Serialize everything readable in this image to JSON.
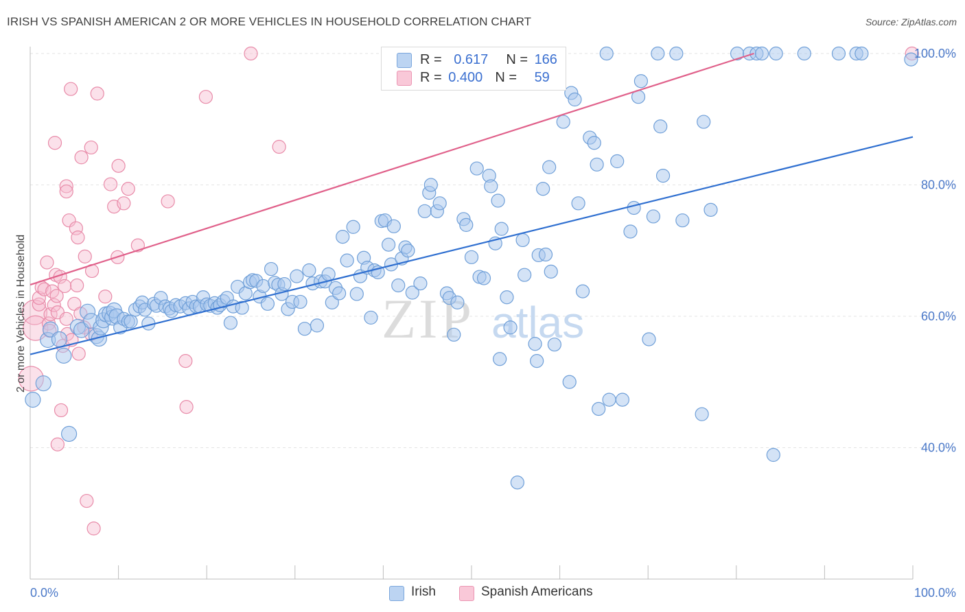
{
  "title": "IRISH VS SPANISH AMERICAN 2 OR MORE VEHICLES IN HOUSEHOLD CORRELATION CHART",
  "source": "Source: ZipAtlas.com",
  "watermark": "ZIPatlas",
  "legend": {
    "irish": {
      "r_label": "R = ",
      "r_value": "0.617",
      "n_label": "N = ",
      "n_value": "166"
    },
    "spanish": {
      "r_label": "R = ",
      "r_value": "0.400",
      "n_label": "N = ",
      "n_value": "59"
    }
  },
  "bottom_legend": {
    "irish": "Irish",
    "spanish": "Spanish Americans"
  },
  "colors": {
    "irish_fill": "#aac8ee",
    "irish_stroke": "#6f9fd8",
    "irish_line": "#2f6fd0",
    "spanish_fill": "#f6bcd0",
    "spanish_stroke": "#e88aa8",
    "spanish_line": "#e0608a",
    "tick_label": "#4a78c8",
    "grid": "#e3e3e3"
  },
  "chart_data": {
    "type": "scatter",
    "title": "IRISH VS SPANISH AMERICAN 2 OR MORE VEHICLES IN HOUSEHOLD CORRELATION CHART",
    "xlabel": "",
    "ylabel": "2 or more Vehicles in Household",
    "xlim": [
      0,
      100
    ],
    "ylim": [
      20,
      102
    ],
    "x_tick_labels": [
      "0.0%",
      "100.0%"
    ],
    "y_ticks": [
      40,
      60,
      80,
      100
    ],
    "y_tick_labels": [
      "40.0%",
      "60.0%",
      "80.0%",
      "100.0%"
    ],
    "grid": true,
    "series": [
      {
        "name": "Irish",
        "r": 0.617,
        "n": 166,
        "trend": {
          "x": [
            0,
            100
          ],
          "y": [
            54.2,
            87.3
          ]
        },
        "points": [
          [
            0.3,
            47.3
          ],
          [
            1.5,
            49.8
          ],
          [
            2.0,
            56.4
          ],
          [
            2.3,
            58.0
          ],
          [
            3.3,
            56.5
          ],
          [
            3.8,
            54.0
          ],
          [
            4.4,
            42.1
          ],
          [
            5.4,
            58.4
          ],
          [
            5.8,
            57.9
          ],
          [
            6.5,
            60.7
          ],
          [
            6.9,
            59.3
          ],
          [
            7.5,
            57.0
          ],
          [
            7.8,
            56.6
          ],
          [
            8.0,
            58.3
          ],
          [
            8.3,
            59.4
          ],
          [
            8.6,
            60.3
          ],
          [
            9.0,
            60.4
          ],
          [
            9.3,
            59.8
          ],
          [
            9.5,
            60.9
          ],
          [
            9.8,
            60.0
          ],
          [
            10.2,
            58.3
          ],
          [
            10.6,
            59.6
          ],
          [
            11.1,
            59.2
          ],
          [
            11.4,
            59.2
          ],
          [
            11.9,
            61.0
          ],
          [
            12.4,
            61.5
          ],
          [
            12.7,
            62.1
          ],
          [
            13.0,
            61.0
          ],
          [
            13.4,
            58.9
          ],
          [
            14.0,
            61.9
          ],
          [
            14.3,
            61.6
          ],
          [
            14.8,
            62.8
          ],
          [
            15.3,
            61.5
          ],
          [
            15.8,
            61.2
          ],
          [
            16.0,
            60.8
          ],
          [
            16.5,
            61.7
          ],
          [
            17.0,
            61.5
          ],
          [
            17.6,
            62.0
          ],
          [
            18.0,
            61.2
          ],
          [
            18.4,
            62.2
          ],
          [
            18.8,
            61.5
          ],
          [
            19.2,
            61.5
          ],
          [
            19.6,
            62.9
          ],
          [
            20.0,
            61.8
          ],
          [
            20.4,
            61.6
          ],
          [
            20.9,
            62.0
          ],
          [
            21.2,
            61.3
          ],
          [
            21.5,
            61.7
          ],
          [
            21.9,
            62.3
          ],
          [
            22.3,
            62.8
          ],
          [
            22.7,
            59.0
          ],
          [
            23.0,
            61.5
          ],
          [
            23.5,
            64.5
          ],
          [
            24.0,
            61.3
          ],
          [
            24.4,
            63.5
          ],
          [
            24.9,
            65.2
          ],
          [
            25.2,
            65.5
          ],
          [
            25.6,
            65.4
          ],
          [
            26.0,
            63.0
          ],
          [
            26.4,
            64.6
          ],
          [
            26.9,
            61.9
          ],
          [
            27.3,
            67.2
          ],
          [
            27.7,
            65.1
          ],
          [
            28.1,
            64.8
          ],
          [
            28.5,
            63.4
          ],
          [
            28.8,
            64.9
          ],
          [
            29.2,
            61.1
          ],
          [
            29.7,
            62.2
          ],
          [
            30.2,
            66.1
          ],
          [
            30.6,
            62.2
          ],
          [
            31.1,
            58.1
          ],
          [
            31.6,
            67.0
          ],
          [
            32.0,
            65.0
          ],
          [
            32.5,
            58.6
          ],
          [
            32.9,
            65.3
          ],
          [
            33.4,
            65.3
          ],
          [
            33.8,
            66.4
          ],
          [
            34.2,
            62.1
          ],
          [
            34.6,
            64.3
          ],
          [
            35.0,
            63.5
          ],
          [
            35.4,
            72.1
          ],
          [
            35.9,
            68.5
          ],
          [
            36.6,
            73.6
          ],
          [
            37.0,
            63.4
          ],
          [
            37.4,
            66.1
          ],
          [
            37.8,
            68.9
          ],
          [
            38.2,
            67.4
          ],
          [
            38.6,
            59.8
          ],
          [
            39.0,
            67.0
          ],
          [
            39.4,
            66.7
          ],
          [
            39.8,
            74.5
          ],
          [
            40.2,
            74.6
          ],
          [
            40.6,
            70.9
          ],
          [
            40.9,
            67.9
          ],
          [
            41.2,
            73.7
          ],
          [
            41.7,
            64.7
          ],
          [
            42.1,
            68.8
          ],
          [
            42.5,
            70.5
          ],
          [
            42.8,
            70.0
          ],
          [
            43.3,
            63.6
          ],
          [
            44.2,
            65.0
          ],
          [
            44.7,
            76.0
          ],
          [
            45.2,
            78.8
          ],
          [
            45.4,
            80.0
          ],
          [
            46.1,
            76.0
          ],
          [
            46.4,
            77.2
          ],
          [
            47.2,
            63.5
          ],
          [
            47.5,
            62.8
          ],
          [
            48.0,
            57.2
          ],
          [
            48.4,
            62.1
          ],
          [
            49.1,
            74.8
          ],
          [
            49.4,
            73.9
          ],
          [
            50.0,
            69.0
          ],
          [
            50.6,
            82.5
          ],
          [
            50.9,
            66.0
          ],
          [
            51.4,
            65.8
          ],
          [
            52.0,
            81.4
          ],
          [
            52.2,
            79.8
          ],
          [
            52.7,
            71.1
          ],
          [
            53.0,
            77.6
          ],
          [
            53.2,
            53.5
          ],
          [
            53.4,
            73.3
          ],
          [
            54.0,
            62.9
          ],
          [
            54.4,
            58.3
          ],
          [
            55.2,
            34.7
          ],
          [
            55.8,
            71.6
          ],
          [
            56.0,
            66.3
          ],
          [
            57.2,
            55.8
          ],
          [
            57.4,
            53.2
          ],
          [
            57.6,
            69.3
          ],
          [
            58.1,
            79.4
          ],
          [
            58.4,
            69.4
          ],
          [
            58.8,
            82.7
          ],
          [
            59.0,
            66.8
          ],
          [
            59.4,
            55.7
          ],
          [
            60.4,
            89.6
          ],
          [
            61.1,
            50.0
          ],
          [
            61.3,
            94.0
          ],
          [
            61.7,
            93.0
          ],
          [
            62.1,
            77.2
          ],
          [
            62.6,
            63.8
          ],
          [
            63.4,
            87.2
          ],
          [
            63.9,
            86.4
          ],
          [
            64.2,
            83.1
          ],
          [
            64.4,
            45.9
          ],
          [
            65.3,
            100.0
          ],
          [
            65.6,
            47.3
          ],
          [
            66.5,
            83.6
          ],
          [
            67.1,
            47.3
          ],
          [
            68.0,
            72.9
          ],
          [
            68.4,
            76.5
          ],
          [
            68.9,
            93.4
          ],
          [
            69.2,
            95.8
          ],
          [
            70.1,
            56.5
          ],
          [
            70.6,
            75.2
          ],
          [
            71.1,
            100.0
          ],
          [
            71.4,
            88.9
          ],
          [
            71.7,
            81.4
          ],
          [
            73.2,
            100.0
          ],
          [
            73.9,
            74.6
          ],
          [
            76.1,
            45.1
          ],
          [
            76.3,
            89.6
          ],
          [
            77.1,
            76.2
          ],
          [
            80.1,
            100.0
          ],
          [
            81.5,
            100.0
          ],
          [
            82.3,
            100.0
          ],
          [
            82.9,
            100.0
          ],
          [
            84.2,
            38.9
          ],
          [
            84.5,
            100.0
          ],
          [
            87.7,
            100.0
          ],
          [
            91.6,
            100.0
          ],
          [
            93.6,
            100.0
          ],
          [
            94.2,
            100.0
          ],
          [
            99.8,
            99.1
          ]
        ]
      },
      {
        "name": "Spanish Americans",
        "r": 0.4,
        "n": 59,
        "trend": {
          "x": [
            0,
            82
          ],
          "y": [
            64.8,
            100.0
          ]
        },
        "points": [
          [
            0.1,
            50.5
          ],
          [
            0.5,
            60.6
          ],
          [
            0.6,
            58.2
          ],
          [
            1.0,
            61.8
          ],
          [
            1.0,
            62.8
          ],
          [
            1.3,
            64.4
          ],
          [
            1.6,
            64.1
          ],
          [
            1.9,
            68.2
          ],
          [
            2.1,
            58.9
          ],
          [
            2.2,
            57.8
          ],
          [
            2.3,
            60.3
          ],
          [
            2.5,
            63.8
          ],
          [
            2.7,
            61.7
          ],
          [
            2.9,
            66.3
          ],
          [
            3.0,
            63.1
          ],
          [
            3.1,
            60.6
          ],
          [
            3.4,
            66.0
          ],
          [
            3.7,
            55.5
          ],
          [
            3.9,
            64.6
          ],
          [
            4.1,
            59.6
          ],
          [
            4.2,
            57.3
          ],
          [
            4.7,
            56.4
          ],
          [
            5.0,
            61.9
          ],
          [
            5.3,
            64.7
          ],
          [
            5.7,
            60.4
          ],
          [
            6.1,
            58.3
          ],
          [
            6.9,
            57.3
          ],
          [
            7.0,
            66.9
          ],
          [
            2.8,
            86.4
          ],
          [
            3.1,
            40.5
          ],
          [
            3.5,
            45.7
          ],
          [
            4.1,
            79.8
          ],
          [
            4.1,
            79.0
          ],
          [
            4.4,
            74.6
          ],
          [
            4.6,
            94.6
          ],
          [
            5.2,
            73.4
          ],
          [
            5.4,
            72.0
          ],
          [
            5.5,
            54.3
          ],
          [
            5.8,
            84.2
          ],
          [
            6.2,
            69.1
          ],
          [
            6.4,
            31.9
          ],
          [
            6.9,
            85.7
          ],
          [
            7.2,
            27.7
          ],
          [
            7.6,
            93.9
          ],
          [
            8.5,
            63.0
          ],
          [
            9.1,
            80.1
          ],
          [
            9.5,
            76.7
          ],
          [
            9.9,
            69.0
          ],
          [
            10.0,
            82.9
          ],
          [
            10.6,
            77.2
          ],
          [
            11.1,
            79.4
          ],
          [
            12.2,
            70.8
          ],
          [
            15.6,
            77.5
          ],
          [
            17.6,
            53.2
          ],
          [
            17.7,
            46.2
          ],
          [
            19.9,
            93.4
          ],
          [
            25.0,
            100.0
          ],
          [
            28.2,
            85.8
          ],
          [
            99.9,
            100.0
          ]
        ]
      }
    ]
  }
}
